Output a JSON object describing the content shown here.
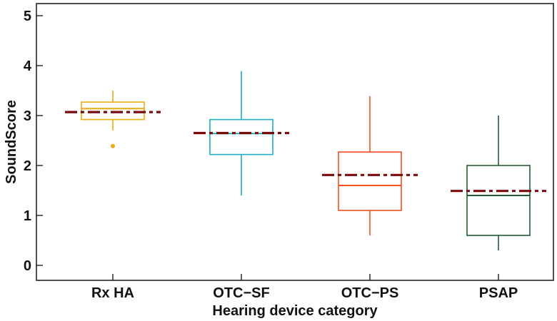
{
  "chart_data": {
    "type": "box",
    "title": "",
    "xlabel": "Hearing device category",
    "ylabel": "SoundScore",
    "ylim": [
      0,
      5
    ],
    "yticks": [
      0,
      1,
      2,
      3,
      4,
      5
    ],
    "grid": false,
    "legend": null,
    "categories": [
      "Rx HA",
      "OTC−SF",
      "OTC−PS",
      "PSAP"
    ],
    "series": [
      {
        "name": "Rx HA",
        "color": "#E8AD10",
        "whisker_low": 2.7,
        "q1": 2.92,
        "median": 3.14,
        "q3": 3.27,
        "whisker_high": 3.5,
        "mean": 3.07,
        "outliers": [
          2.39
        ]
      },
      {
        "name": "OTC−SF",
        "color": "#1EAFC2",
        "whisker_low": 1.4,
        "q1": 2.22,
        "median": 2.64,
        "q3": 2.92,
        "whisker_high": 3.89,
        "mean": 2.65,
        "outliers": []
      },
      {
        "name": "OTC−PS",
        "color": "#F24E22",
        "whisker_low": 0.6,
        "q1": 1.1,
        "median": 1.6,
        "q3": 2.27,
        "whisker_high": 3.39,
        "mean": 1.81,
        "outliers": []
      },
      {
        "name": "PSAP",
        "color": "#1E5E2E",
        "whisker_low": 0.3,
        "q1": 0.6,
        "median": 1.4,
        "q3": 2.0,
        "whisker_high": 3.0,
        "mean": 1.49,
        "outliers": []
      }
    ],
    "mean_line": {
      "color": "#7A0A0A",
      "style": "dash-dot",
      "label": "mean"
    }
  }
}
